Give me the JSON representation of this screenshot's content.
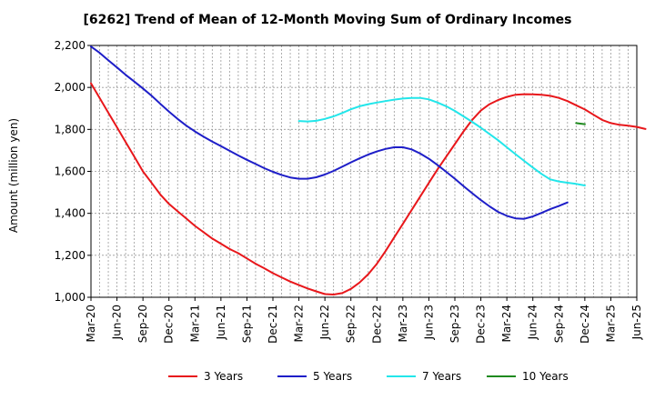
{
  "chart_data": {
    "type": "line",
    "title": "[6262]  Trend of Mean of 12-Month Moving Sum of Ordinary Incomes",
    "xlabel": "",
    "ylabel": "Amount (million yen)",
    "ylim": [
      1000,
      2200
    ],
    "yticks": [
      1000,
      1200,
      1400,
      1600,
      1800,
      2000,
      2200
    ],
    "ytick_labels": [
      "1,000",
      "1,200",
      "1,400",
      "1,600",
      "1,800",
      "2,000",
      "2,200"
    ],
    "x_ticks": [
      "Mar-20",
      "Jun-20",
      "Sep-20",
      "Dec-20",
      "Mar-21",
      "Jun-21",
      "Sep-21",
      "Dec-21",
      "Mar-22",
      "Jun-22",
      "Sep-22",
      "Dec-22",
      "Mar-23",
      "Jun-23",
      "Sep-23",
      "Dec-23",
      "Mar-24",
      "Jun-24",
      "Sep-24",
      "Dec-24",
      "Mar-25",
      "Jun-25"
    ],
    "grid": true,
    "legend_position": "bottom",
    "series": [
      {
        "name": "3 Years",
        "color": "#e8171b",
        "start_index": 0,
        "values": [
          2020,
          1950,
          1880,
          1810,
          1740,
          1670,
          1600,
          1545,
          1490,
          1445,
          1410,
          1375,
          1340,
          1310,
          1280,
          1255,
          1230,
          1210,
          1185,
          1160,
          1138,
          1115,
          1095,
          1075,
          1058,
          1042,
          1028,
          1015,
          1013,
          1020,
          1040,
          1070,
          1110,
          1160,
          1220,
          1285,
          1350,
          1415,
          1480,
          1545,
          1610,
          1670,
          1730,
          1790,
          1845,
          1890,
          1920,
          1940,
          1955,
          1965,
          1968,
          1967,
          1965,
          1960,
          1950,
          1935,
          1915,
          1895,
          1870,
          1845,
          1830,
          1822,
          1818,
          1812,
          1802
        ]
      },
      {
        "name": "5 Years",
        "color": "#1e1ec8",
        "start_index": 0,
        "values": [
          2195,
          2165,
          2130,
          2095,
          2060,
          2028,
          1995,
          1960,
          1922,
          1885,
          1850,
          1818,
          1790,
          1765,
          1742,
          1720,
          1698,
          1676,
          1655,
          1635,
          1615,
          1598,
          1583,
          1571,
          1565,
          1565,
          1572,
          1585,
          1602,
          1622,
          1643,
          1662,
          1680,
          1695,
          1707,
          1715,
          1715,
          1705,
          1685,
          1660,
          1630,
          1598,
          1565,
          1530,
          1496,
          1463,
          1433,
          1407,
          1388,
          1376,
          1374,
          1385,
          1402,
          1420,
          1435,
          1452
        ]
      },
      {
        "name": "7 Years",
        "color": "#22e6ea",
        "start_index": 24,
        "values": [
          1840,
          1838,
          1841,
          1850,
          1862,
          1878,
          1896,
          1910,
          1920,
          1928,
          1935,
          1942,
          1947,
          1950,
          1950,
          1943,
          1928,
          1910,
          1888,
          1862,
          1836,
          1808,
          1778,
          1748,
          1715,
          1682,
          1650,
          1618,
          1588,
          1562,
          1552,
          1546,
          1540,
          1533
        ]
      },
      {
        "name": "10 Years",
        "color": "#1f8a1f",
        "start_index": 56,
        "values": [
          1830,
          1825
        ]
      }
    ]
  }
}
